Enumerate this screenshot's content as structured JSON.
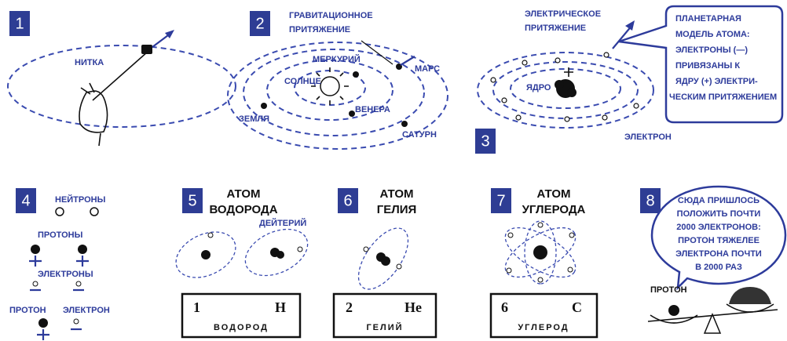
{
  "panels": [
    {
      "number": "1",
      "texts": [
        "НИТКА"
      ]
    },
    {
      "number": "2",
      "texts": [
        "ГРАВИТАЦИОННОЕ",
        "ПРИТЯЖЕНИЕ",
        "МЕРКУРИЙ",
        "МАРС",
        "СОЛНЦЕ",
        "ЗЕМЛЯ",
        "ВЕНЕРА",
        "САТУРН"
      ]
    },
    {
      "number": "3",
      "texts": [
        "ЭЛЕКТРИЧЕСКОЕ",
        "ПРИТЯЖЕНИЕ",
        "ЯДРО",
        "ЭЛЕКТРОН"
      ],
      "bubble": [
        "ПЛАНЕТАРНАЯ",
        "МОДЕЛЬ АТОМА:",
        "ЭЛЕКТРОНЫ (—)",
        "ПРИВЯЗАНЫ  К",
        "ЯДРУ (+) ЭЛЕКТРИ-",
        "ЧЕСКИМ ПРИТЯЖЕНИЕМ"
      ]
    },
    {
      "number": "4",
      "texts": [
        "НЕЙТРОНЫ",
        "ПРОТОНЫ",
        "ЭЛЕКТРОНЫ",
        "ПРОТОН",
        "ЭЛЕКТРОН"
      ]
    },
    {
      "number": "5",
      "title": [
        "АТОМ",
        "ВОДОРОДА"
      ],
      "texts": [
        "ДЕЙТЕРИЙ"
      ],
      "card": {
        "number": "1",
        "symbol": "H",
        "name": "ВОДОРОД"
      }
    },
    {
      "number": "6",
      "title": [
        "АТОМ",
        "ГЕЛИЯ"
      ],
      "card": {
        "number": "2",
        "symbol": "He",
        "name": "ГЕЛИЙ"
      }
    },
    {
      "number": "7",
      "title": [
        "АТОМ",
        "УГЛЕРОДА"
      ],
      "card": {
        "number": "6",
        "symbol": "C",
        "name": "УГЛЕРОД"
      }
    },
    {
      "number": "8",
      "bubble": [
        "СЮДА ПРИШЛОСЬ",
        "ПОЛОЖИТЬ ПОЧТИ",
        "2000 ЭЛЕКТРОНОВ:",
        "ПРОТОН ТЯЖЕЛЕЕ",
        "ЭЛЕКТРОНА ПОЧТИ",
        "В 2000 РАЗ"
      ],
      "texts": [
        "ПРОТОН"
      ]
    }
  ]
}
